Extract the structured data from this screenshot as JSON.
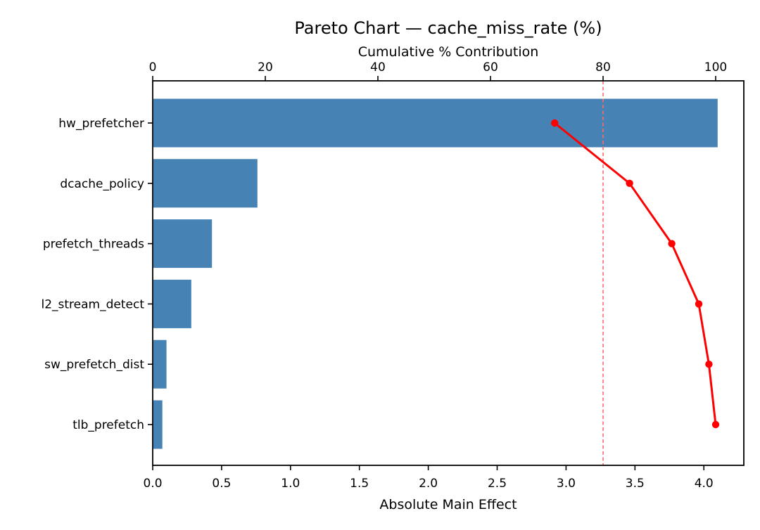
{
  "chart_data": {
    "type": "bar",
    "subtype": "pareto",
    "orientation": "horizontal",
    "title": "Pareto Chart — cache_miss_rate (%)",
    "grid": false,
    "legend": "none",
    "categories": [
      "hw_prefetcher",
      "dcache_policy",
      "prefetch_threads",
      "l2_stream_detect",
      "sw_prefetch_dist",
      "tlb_prefetch"
    ],
    "series": [
      {
        "name": "Absolute Main Effect",
        "type": "bar",
        "values": [
          4.1,
          0.76,
          0.43,
          0.28,
          0.1,
          0.07
        ]
      },
      {
        "name": "Cumulative % Contribution",
        "type": "line",
        "values": [
          71.4,
          84.7,
          92.2,
          97.0,
          98.8,
          100.0
        ]
      }
    ],
    "bottom_axis": {
      "label": "Absolute Main Effect",
      "tick_values": [
        0.0,
        0.5,
        1.0,
        1.5,
        2.0,
        2.5,
        3.0,
        3.5,
        4.0
      ],
      "tick_labels": [
        "0.0",
        "0.5",
        "1.0",
        "1.5",
        "2.0",
        "2.5",
        "3.0",
        "3.5",
        "4.0"
      ],
      "range": [
        0,
        4.29
      ]
    },
    "top_axis": {
      "label": "Cumulative % Contribution",
      "tick_values": [
        0,
        20,
        40,
        60,
        80,
        100
      ],
      "tick_labels": [
        "0",
        "20",
        "40",
        "60",
        "80",
        "100"
      ],
      "range": [
        0,
        105
      ]
    },
    "threshold_line": {
      "value_pct": 80,
      "style": "dashed",
      "orientation": "vertical"
    },
    "colors": {
      "bar": "#4682B4",
      "cumulative_line": "#FF0000",
      "marker": "#FF0000",
      "threshold": "#FF6B6B",
      "axis": "#000000",
      "background": "#FFFFFF"
    }
  }
}
